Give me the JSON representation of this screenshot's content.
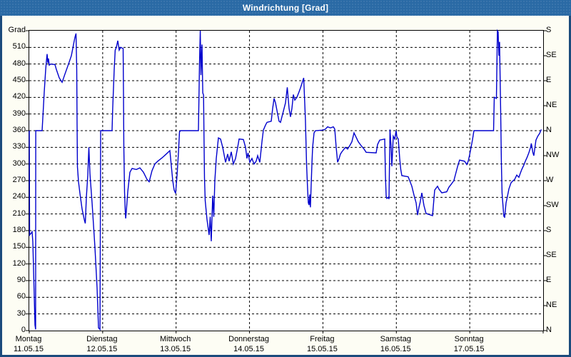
{
  "title": "Windrichtung [Grad]",
  "colors": {
    "titlebar": "#2a6aa5",
    "window_border": "#1b4b7c",
    "page_background": "#fdfdf4",
    "plot_background": "#ffffff",
    "grid": "#000000",
    "line": "#0000cd"
  },
  "y_axis_left": {
    "top_label": "Grad",
    "tick_labels": [
      510,
      480,
      450,
      420,
      390,
      360,
      330,
      300,
      270,
      240,
      210,
      180,
      150,
      120,
      90,
      60,
      30,
      0
    ]
  },
  "y_axis_right": {
    "labels": [
      "S",
      "SE",
      "E",
      "NE",
      "N",
      "NW",
      "W",
      "SW",
      "S",
      "SE",
      "E",
      "NE",
      "N"
    ],
    "degrees": [
      540,
      495,
      450,
      405,
      360,
      315,
      270,
      225,
      180,
      135,
      90,
      45,
      0
    ]
  },
  "x_axis": {
    "days": [
      {
        "name": "Montag",
        "date": "11.05.15"
      },
      {
        "name": "Dienstag",
        "date": "12.05.15"
      },
      {
        "name": "Mittwoch",
        "date": "13.05.15"
      },
      {
        "name": "Donnerstag",
        "date": "14.05.15"
      },
      {
        "name": "Freitag",
        "date": "15.05.15"
      },
      {
        "name": "Samstag",
        "date": "16.05.15"
      },
      {
        "name": "Sonntag",
        "date": "17.05.15"
      }
    ]
  },
  "chart_data": {
    "type": "line",
    "title": "Windrichtung [Grad]",
    "ylabel": "Grad",
    "ylim": [
      0,
      540
    ],
    "y_grid_step": 30,
    "x_unit": "days since Montag 11.05.15 00:00",
    "xlim": [
      0,
      7
    ],
    "grid": true,
    "legend": false,
    "series": [
      {
        "name": "Windrichtung",
        "points": [
          [
            0.0,
            360
          ],
          [
            0.005,
            172
          ],
          [
            0.029,
            176
          ],
          [
            0.039,
            178
          ],
          [
            0.049,
            160
          ],
          [
            0.068,
            60
          ],
          [
            0.078,
            10
          ],
          [
            0.087,
            2
          ],
          [
            0.088,
            360
          ],
          [
            0.175,
            360
          ],
          [
            0.204,
            430
          ],
          [
            0.224,
            470
          ],
          [
            0.233,
            485
          ],
          [
            0.243,
            498
          ],
          [
            0.253,
            482
          ],
          [
            0.262,
            490
          ],
          [
            0.272,
            478
          ],
          [
            0.292,
            480
          ],
          [
            0.35,
            479
          ],
          [
            0.369,
            470
          ],
          [
            0.408,
            455
          ],
          [
            0.447,
            447
          ],
          [
            0.486,
            462
          ],
          [
            0.535,
            480
          ],
          [
            0.574,
            495
          ],
          [
            0.603,
            515
          ],
          [
            0.622,
            528
          ],
          [
            0.637,
            535
          ],
          [
            0.647,
            470
          ],
          [
            0.651,
            370
          ],
          [
            0.656,
            295
          ],
          [
            0.671,
            268
          ],
          [
            0.69,
            247
          ],
          [
            0.719,
            219
          ],
          [
            0.749,
            200
          ],
          [
            0.763,
            193
          ],
          [
            0.778,
            240
          ],
          [
            0.797,
            280
          ],
          [
            0.812,
            330
          ],
          [
            0.826,
            283
          ],
          [
            0.856,
            230
          ],
          [
            0.894,
            150
          ],
          [
            0.924,
            77
          ],
          [
            0.943,
            5
          ],
          [
            0.963,
            2
          ],
          [
            0.972,
            360
          ],
          [
            1.128,
            360
          ],
          [
            1.137,
            400
          ],
          [
            1.157,
            470
          ],
          [
            1.171,
            505
          ],
          [
            1.186,
            510
          ],
          [
            1.206,
            522
          ],
          [
            1.225,
            505
          ],
          [
            1.244,
            510
          ],
          [
            1.278,
            508
          ],
          [
            1.283,
            430
          ],
          [
            1.288,
            330
          ],
          [
            1.298,
            250
          ],
          [
            1.308,
            215
          ],
          [
            1.313,
            202
          ],
          [
            1.322,
            215
          ],
          [
            1.342,
            250
          ],
          [
            1.371,
            285
          ],
          [
            1.4,
            292
          ],
          [
            1.458,
            290
          ],
          [
            1.507,
            293
          ],
          [
            1.556,
            285
          ],
          [
            1.604,
            272
          ],
          [
            1.633,
            268
          ],
          [
            1.672,
            288
          ],
          [
            1.711,
            300
          ],
          [
            1.75,
            305
          ],
          [
            1.808,
            311
          ],
          [
            1.867,
            318
          ],
          [
            1.915,
            324
          ],
          [
            1.954,
            270
          ],
          [
            1.974,
            253
          ],
          [
            1.993,
            247
          ],
          [
            2.013,
            280
          ],
          [
            2.032,
            320
          ],
          [
            2.047,
            358
          ],
          [
            2.061,
            360
          ],
          [
            2.304,
            360
          ],
          [
            2.319,
            480
          ],
          [
            2.329,
            540
          ],
          [
            2.338,
            460
          ],
          [
            2.353,
            515
          ],
          [
            2.363,
            428
          ],
          [
            2.374,
            424
          ],
          [
            2.38,
            350
          ],
          [
            2.387,
            275
          ],
          [
            2.397,
            234
          ],
          [
            2.421,
            200
          ],
          [
            2.45,
            172
          ],
          [
            2.465,
            205
          ],
          [
            2.479,
            161
          ],
          [
            2.499,
            243
          ],
          [
            2.513,
            205
          ],
          [
            2.528,
            270
          ],
          [
            2.547,
            310
          ],
          [
            2.576,
            347
          ],
          [
            2.606,
            345
          ],
          [
            2.635,
            330
          ],
          [
            2.674,
            303
          ],
          [
            2.703,
            318
          ],
          [
            2.722,
            305
          ],
          [
            2.751,
            322
          ],
          [
            2.78,
            300
          ],
          [
            2.81,
            310
          ],
          [
            2.839,
            330
          ],
          [
            2.858,
            345
          ],
          [
            2.917,
            344
          ],
          [
            2.946,
            330
          ],
          [
            2.965,
            310
          ],
          [
            2.98,
            320
          ],
          [
            3.004,
            303
          ],
          [
            3.033,
            310
          ],
          [
            3.062,
            300
          ],
          [
            3.091,
            305
          ],
          [
            3.111,
            315
          ],
          [
            3.14,
            303
          ],
          [
            3.169,
            340
          ],
          [
            3.189,
            361
          ],
          [
            3.218,
            370
          ],
          [
            3.238,
            375
          ],
          [
            3.296,
            377
          ],
          [
            3.315,
            400
          ],
          [
            3.335,
            418
          ],
          [
            3.354,
            410
          ],
          [
            3.383,
            390
          ],
          [
            3.403,
            377
          ],
          [
            3.422,
            375
          ],
          [
            3.461,
            395
          ],
          [
            3.49,
            410
          ],
          [
            3.515,
            438
          ],
          [
            3.539,
            400
          ],
          [
            3.558,
            385
          ],
          [
            3.578,
            400
          ],
          [
            3.597,
            425
          ],
          [
            3.617,
            415
          ],
          [
            3.646,
            420
          ],
          [
            3.675,
            430
          ],
          [
            3.694,
            437
          ],
          [
            3.714,
            445
          ],
          [
            3.738,
            455
          ],
          [
            3.762,
            380
          ],
          [
            3.777,
            300
          ],
          [
            3.792,
            253
          ],
          [
            3.801,
            230
          ],
          [
            3.811,
            226
          ],
          [
            3.821,
            245
          ],
          [
            3.83,
            222
          ],
          [
            3.85,
            300
          ],
          [
            3.86,
            330
          ],
          [
            3.879,
            356
          ],
          [
            3.899,
            360
          ],
          [
            4.006,
            361
          ],
          [
            4.035,
            363
          ],
          [
            4.064,
            367
          ],
          [
            4.103,
            365
          ],
          [
            4.142,
            367
          ],
          [
            4.161,
            363
          ],
          [
            4.181,
            330
          ],
          [
            4.2,
            303
          ],
          [
            4.22,
            310
          ],
          [
            4.239,
            318
          ],
          [
            4.258,
            322
          ],
          [
            4.307,
            330
          ],
          [
            4.336,
            327
          ],
          [
            4.365,
            333
          ],
          [
            4.394,
            340
          ],
          [
            4.424,
            356
          ],
          [
            4.453,
            348
          ],
          [
            4.482,
            340
          ],
          [
            4.521,
            333
          ],
          [
            4.56,
            327
          ],
          [
            4.589,
            321
          ],
          [
            4.725,
            320
          ],
          [
            4.744,
            335
          ],
          [
            4.774,
            343
          ],
          [
            4.842,
            345
          ],
          [
            4.851,
            280
          ],
          [
            4.861,
            243
          ],
          [
            4.871,
            238
          ],
          [
            4.89,
            240
          ],
          [
            4.9,
            237
          ],
          [
            4.914,
            362
          ],
          [
            4.929,
            330
          ],
          [
            4.939,
            296
          ],
          [
            4.958,
            350
          ],
          [
            4.978,
            345
          ],
          [
            4.997,
            360
          ],
          [
            5.007,
            349
          ],
          [
            5.026,
            345
          ],
          [
            5.046,
            310
          ],
          [
            5.06,
            290
          ],
          [
            5.075,
            279
          ],
          [
            5.162,
            277
          ],
          [
            5.182,
            270
          ],
          [
            5.211,
            260
          ],
          [
            5.24,
            244
          ],
          [
            5.269,
            230
          ],
          [
            5.289,
            208
          ],
          [
            5.308,
            222
          ],
          [
            5.323,
            230
          ],
          [
            5.347,
            248
          ],
          [
            5.376,
            225
          ],
          [
            5.405,
            211
          ],
          [
            5.493,
            207
          ],
          [
            5.522,
            253
          ],
          [
            5.561,
            260
          ],
          [
            5.58,
            255
          ],
          [
            5.619,
            248
          ],
          [
            5.687,
            250
          ],
          [
            5.716,
            258
          ],
          [
            5.745,
            263
          ],
          [
            5.784,
            270
          ],
          [
            5.833,
            295
          ],
          [
            5.862,
            307
          ],
          [
            5.93,
            305
          ],
          [
            5.959,
            299
          ],
          [
            5.979,
            305
          ],
          [
            5.998,
            316
          ],
          [
            6.037,
            343
          ],
          [
            6.057,
            360
          ],
          [
            6.324,
            360
          ],
          [
            6.334,
            420
          ],
          [
            6.363,
            418
          ],
          [
            6.377,
            540
          ],
          [
            6.387,
            538
          ],
          [
            6.397,
            495
          ],
          [
            6.406,
            520
          ],
          [
            6.421,
            400
          ],
          [
            6.431,
            300
          ],
          [
            6.44,
            248
          ],
          [
            6.45,
            230
          ],
          [
            6.46,
            212
          ],
          [
            6.465,
            205
          ],
          [
            6.47,
            210
          ],
          [
            6.475,
            203
          ],
          [
            6.494,
            230
          ],
          [
            6.514,
            242
          ],
          [
            6.533,
            255
          ],
          [
            6.562,
            266
          ],
          [
            6.591,
            270
          ],
          [
            6.611,
            272
          ],
          [
            6.64,
            280
          ],
          [
            6.669,
            276
          ],
          [
            6.688,
            283
          ],
          [
            6.708,
            290
          ],
          [
            6.737,
            298
          ],
          [
            6.757,
            305
          ],
          [
            6.781,
            312
          ],
          [
            6.805,
            320
          ],
          [
            6.829,
            330
          ],
          [
            6.839,
            337
          ],
          [
            6.859,
            321
          ],
          [
            6.873,
            315
          ],
          [
            6.902,
            343
          ],
          [
            6.926,
            350
          ],
          [
            6.951,
            355
          ],
          [
            6.975,
            362
          ]
        ]
      }
    ]
  }
}
